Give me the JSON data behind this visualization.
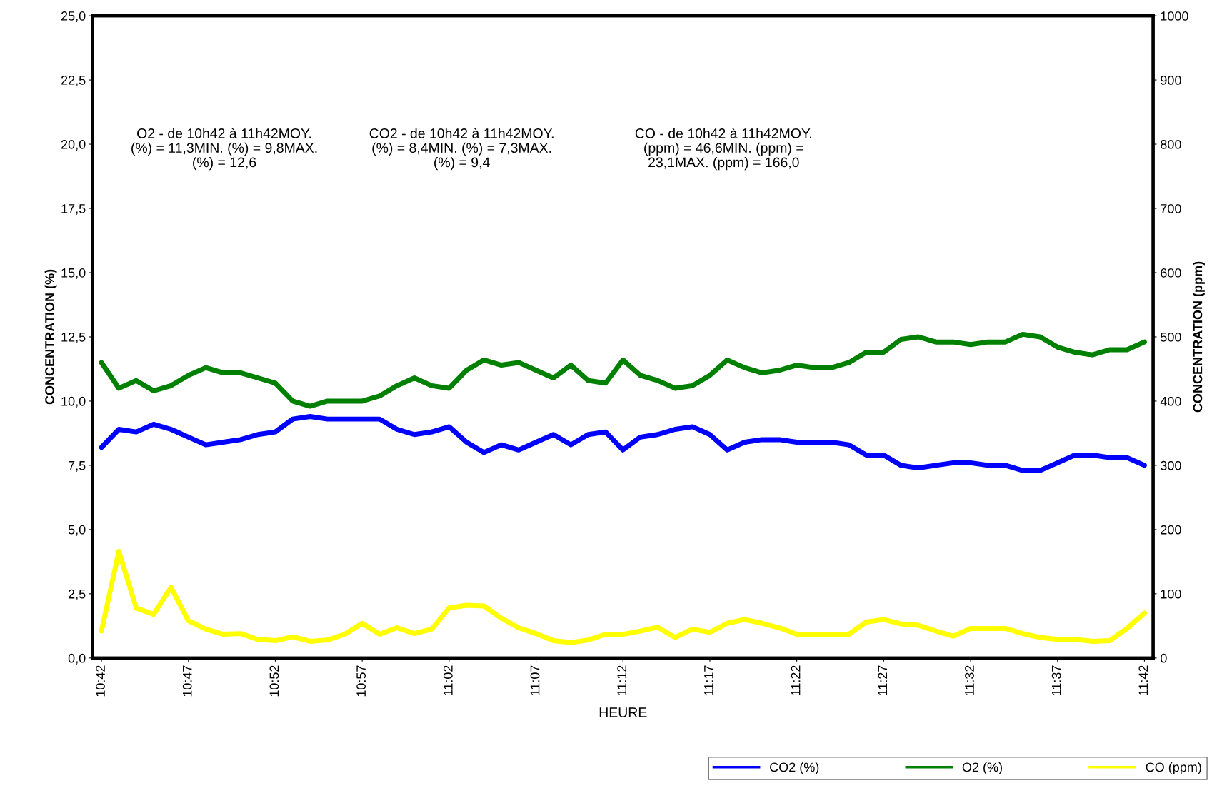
{
  "chart_data": {
    "type": "line",
    "xlabel": "HEURE",
    "ylabel": "CONCENTRATION (%)",
    "y2label": "CONCENTRATION (ppm)",
    "categories": [
      "10:42",
      null,
      null,
      null,
      null,
      "10:47",
      null,
      null,
      null,
      null,
      "10:52",
      null,
      null,
      null,
      null,
      "10:57",
      null,
      null,
      null,
      null,
      "11:02",
      null,
      null,
      null,
      null,
      "11:07",
      null,
      null,
      null,
      null,
      "11:12",
      null,
      null,
      null,
      null,
      "11:17",
      null,
      null,
      null,
      null,
      "11:22",
      null,
      null,
      null,
      null,
      "11:27",
      null,
      null,
      null,
      null,
      "11:32",
      null,
      null,
      null,
      null,
      "11:37",
      null,
      null,
      null,
      null,
      "11:42"
    ],
    "series": [
      {
        "name": "CO2 (%)",
        "color": "#0000ff",
        "values": [
          8.2,
          8.9,
          8.8,
          9.1,
          8.9,
          8.6,
          8.3,
          8.4,
          8.5,
          8.7,
          8.8,
          9.3,
          9.4,
          9.3,
          9.3,
          9.3,
          9.3,
          8.9,
          8.7,
          8.8,
          9.0,
          8.4,
          8.0,
          8.3,
          8.1,
          8.4,
          8.7,
          8.3,
          8.7,
          8.8,
          8.1,
          8.6,
          8.7,
          8.9,
          9.0,
          8.7,
          8.1,
          8.4,
          8.5,
          8.5,
          8.4,
          8.4,
          8.4,
          8.3,
          7.9,
          7.9,
          7.5,
          7.4,
          7.5,
          7.6,
          7.6,
          7.5,
          7.5,
          7.3,
          7.3,
          7.6,
          7.9,
          7.9,
          7.8,
          7.8,
          7.5
        ]
      },
      {
        "name": "O2 (%)",
        "color": "#008000",
        "values": [
          11.5,
          10.5,
          10.8,
          10.4,
          10.6,
          11.0,
          11.3,
          11.1,
          11.1,
          10.9,
          10.7,
          10.0,
          9.8,
          10.0,
          10.0,
          10.0,
          10.2,
          10.6,
          10.9,
          10.6,
          10.5,
          11.2,
          11.6,
          11.4,
          11.5,
          11.2,
          10.9,
          11.4,
          10.8,
          10.7,
          11.6,
          11.0,
          10.8,
          10.5,
          10.6,
          11.0,
          11.6,
          11.3,
          11.1,
          11.2,
          11.4,
          11.3,
          11.3,
          11.5,
          11.9,
          11.9,
          12.4,
          12.5,
          12.3,
          12.3,
          12.2,
          12.3,
          12.3,
          12.6,
          12.5,
          12.1,
          11.9,
          11.8,
          12.0,
          12.0,
          12.3
        ]
      },
      {
        "name": "CO (ppm)",
        "color": "#ffff00",
        "axis": "y2",
        "values": [
          42,
          166,
          78,
          68,
          110,
          58,
          45,
          37,
          38,
          29,
          27,
          33,
          26,
          28,
          37,
          54,
          37,
          47,
          38,
          45,
          78,
          82,
          81,
          62,
          47,
          38,
          27,
          24,
          28,
          37,
          37,
          42,
          48,
          32,
          45,
          40,
          54,
          60,
          54,
          47,
          37,
          36,
          37,
          37,
          56,
          60,
          53,
          51,
          42,
          34,
          46,
          46,
          46,
          38,
          32,
          29,
          29,
          26,
          27,
          46,
          70
        ]
      }
    ],
    "ylim": [
      0,
      25
    ],
    "yticks": [
      {
        "value": 0,
        "label": "0,0"
      },
      {
        "value": 2.5,
        "label": "2,5"
      },
      {
        "value": 5,
        "label": "5,0"
      },
      {
        "value": 7.5,
        "label": "7,5"
      },
      {
        "value": 10,
        "label": "10,0"
      },
      {
        "value": 12.5,
        "label": "12,5"
      },
      {
        "value": 15,
        "label": "15,0"
      },
      {
        "value": 17.5,
        "label": "17,5"
      },
      {
        "value": 20,
        "label": "20,0"
      },
      {
        "value": 22.5,
        "label": "22,5"
      },
      {
        "value": 25,
        "label": "25,0"
      }
    ],
    "y2lim": [
      0,
      1000
    ],
    "y2ticks": [
      0,
      100,
      200,
      300,
      400,
      500,
      600,
      700,
      800,
      900,
      1000
    ],
    "annotations": [
      "O2 - de 10h42 à 11h42MOY.\n(%) = 11,3MIN. (%) = 9,8MAX.\n(%) = 12,6",
      "CO2 - de 10h42 à 11h42MOY.\n(%) = 8,4MIN. (%) = 7,3MAX.\n(%) = 9,4",
      "CO - de 10h42 à 11h42MOY.\n(ppm) = 46,6MIN. (ppm) =\n23,1MAX. (ppm) = 166,0"
    ],
    "legend": "bottom right",
    "grid": false,
    "marker": "none",
    "line_style": "solid"
  }
}
